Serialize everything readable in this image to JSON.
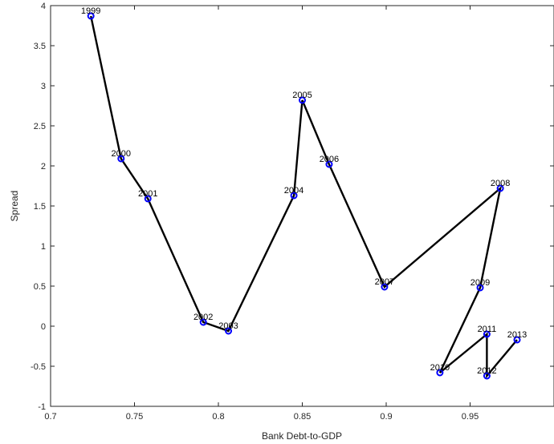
{
  "chart_data": {
    "type": "line",
    "title": "",
    "xlabel": "Bank Debt-to-GDP",
    "ylabel": "Spread",
    "xlim": [
      0.7,
      1.0
    ],
    "ylim": [
      -1,
      4
    ],
    "xticks": [
      0.7,
      0.75,
      0.8,
      0.85,
      0.9,
      0.95
    ],
    "xtick_labels": [
      "0.7",
      "0.75",
      "0.8",
      "0.85",
      "0.9",
      "0.95"
    ],
    "yticks": [
      -1,
      -0.5,
      0,
      0.5,
      1,
      1.5,
      2,
      2.5,
      3,
      3.5,
      4
    ],
    "ytick_labels": [
      "-1",
      "-0.5",
      "0",
      "0.5",
      "1",
      "1.5",
      "2",
      "2.5",
      "3",
      "3.5",
      "4"
    ],
    "grid": false,
    "line_color": "#000000",
    "marker_color": "#0000ff",
    "points": [
      {
        "label": "1999",
        "x": 0.724,
        "y": 3.87
      },
      {
        "label": "2000",
        "x": 0.742,
        "y": 2.09
      },
      {
        "label": "2001",
        "x": 0.758,
        "y": 1.59
      },
      {
        "label": "2002",
        "x": 0.791,
        "y": 0.05
      },
      {
        "label": "2003",
        "x": 0.806,
        "y": -0.06
      },
      {
        "label": "2004",
        "x": 0.845,
        "y": 1.63
      },
      {
        "label": "2005",
        "x": 0.85,
        "y": 2.82
      },
      {
        "label": "2006",
        "x": 0.866,
        "y": 2.02
      },
      {
        "label": "2007",
        "x": 0.899,
        "y": 0.49
      },
      {
        "label": "2008",
        "x": 0.968,
        "y": 1.72
      },
      {
        "label": "2009",
        "x": 0.956,
        "y": 0.48
      },
      {
        "label": "2010",
        "x": 0.932,
        "y": -0.58
      },
      {
        "label": "2011",
        "x": 0.96,
        "y": -0.1
      },
      {
        "label": "2012",
        "x": 0.96,
        "y": -0.62
      },
      {
        "label": "2013",
        "x": 0.978,
        "y": -0.17
      }
    ]
  }
}
